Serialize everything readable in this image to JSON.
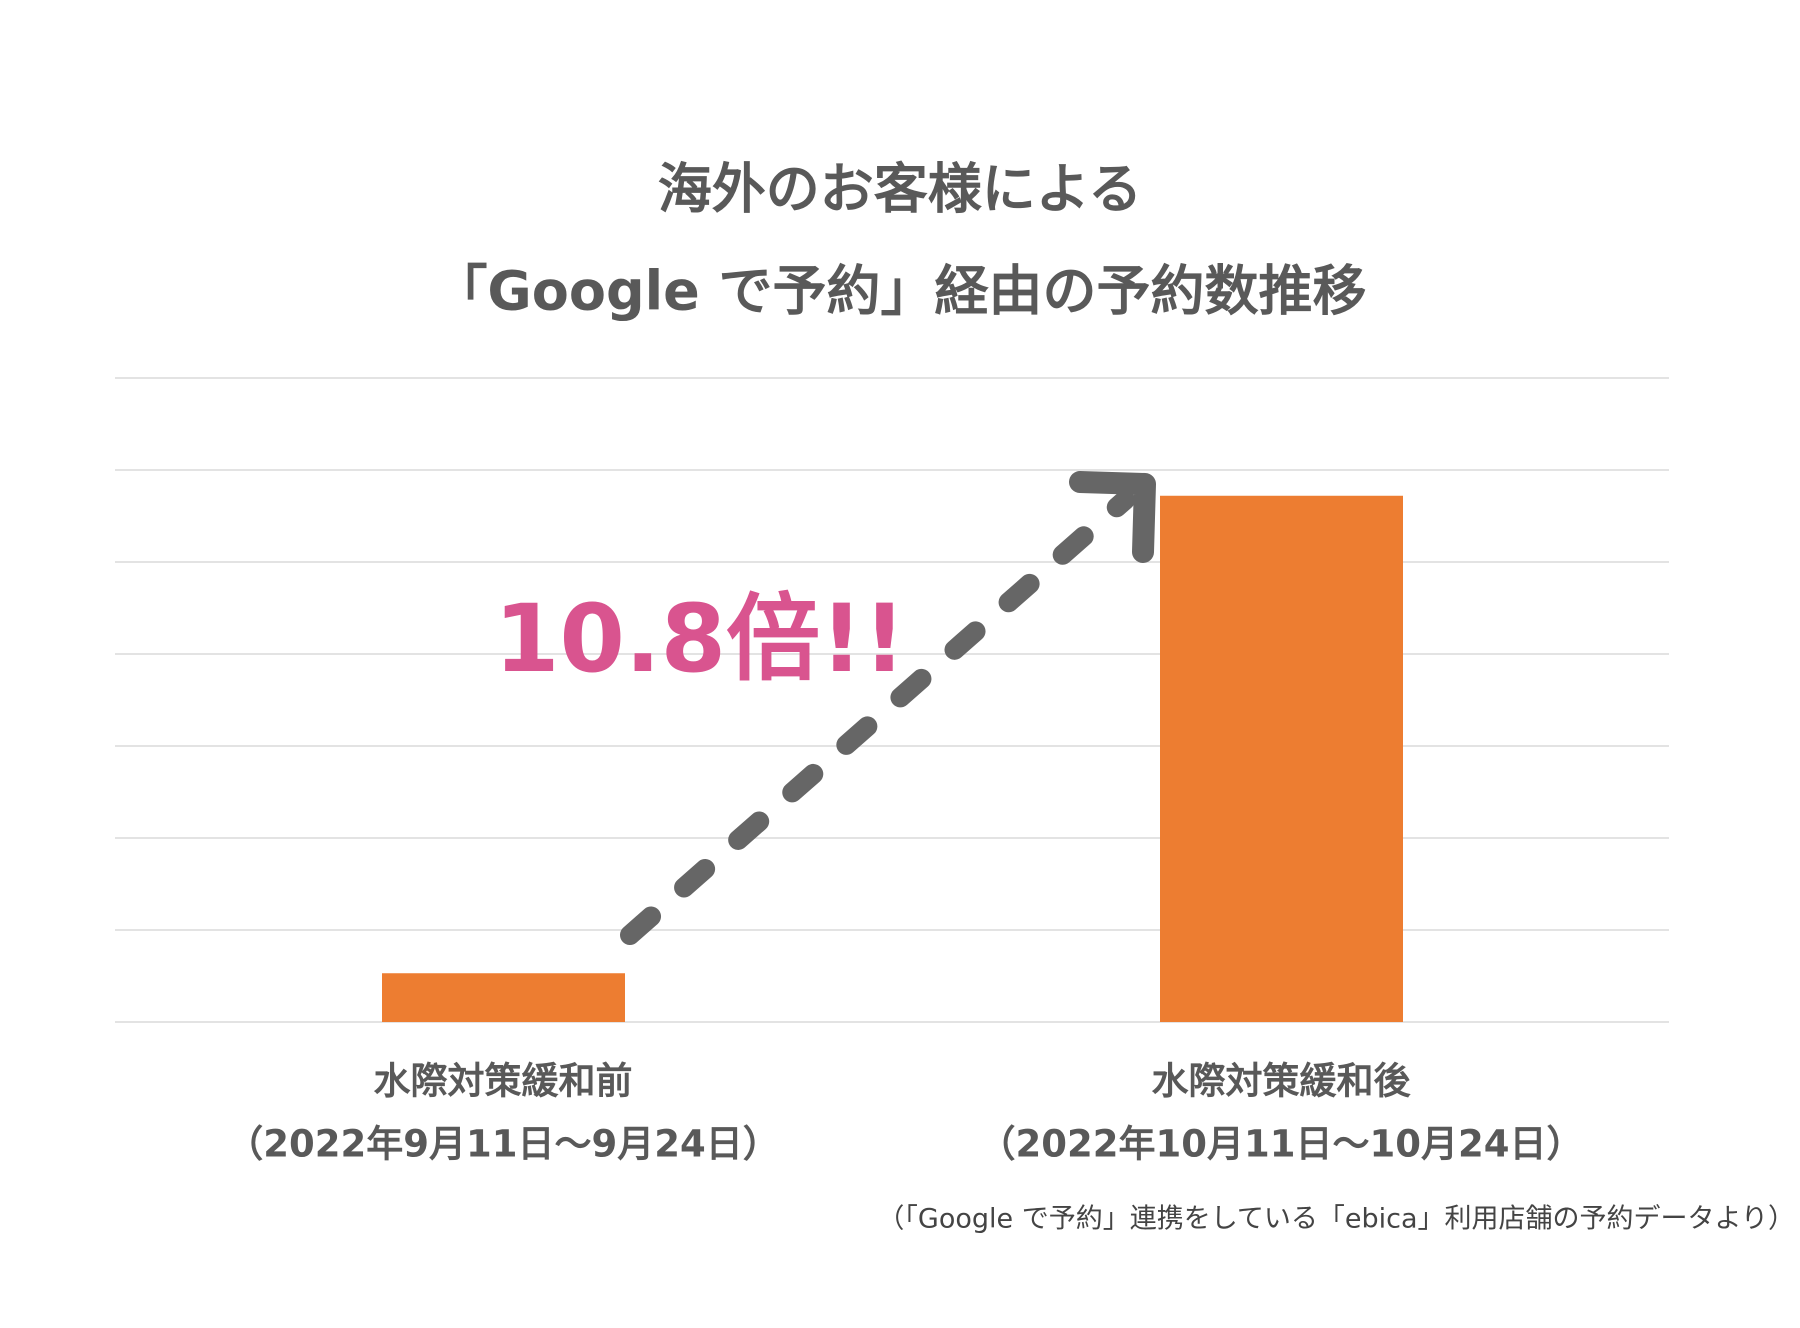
{
  "chart_data": {
    "type": "bar",
    "title_lines": [
      "海外のお客様による",
      "「Google で予約」経由の予約数推移"
    ],
    "categories": [
      "水際対策緩和前",
      "水際対策緩和後"
    ],
    "periods": [
      "（2022年9月11日～9月24日）",
      "（2022年10月11日～10月24日）"
    ],
    "values": [
      0.53,
      5.72
    ],
    "color": "#ed7d31",
    "ylim": [
      0,
      7
    ],
    "yticks": [
      0,
      1,
      2,
      3,
      4,
      5,
      6,
      7
    ],
    "grid": true,
    "annotation": "10.8倍!!",
    "source": "（「Google で予約」連携をしている「ebica」利用店舗の予約データより）"
  }
}
